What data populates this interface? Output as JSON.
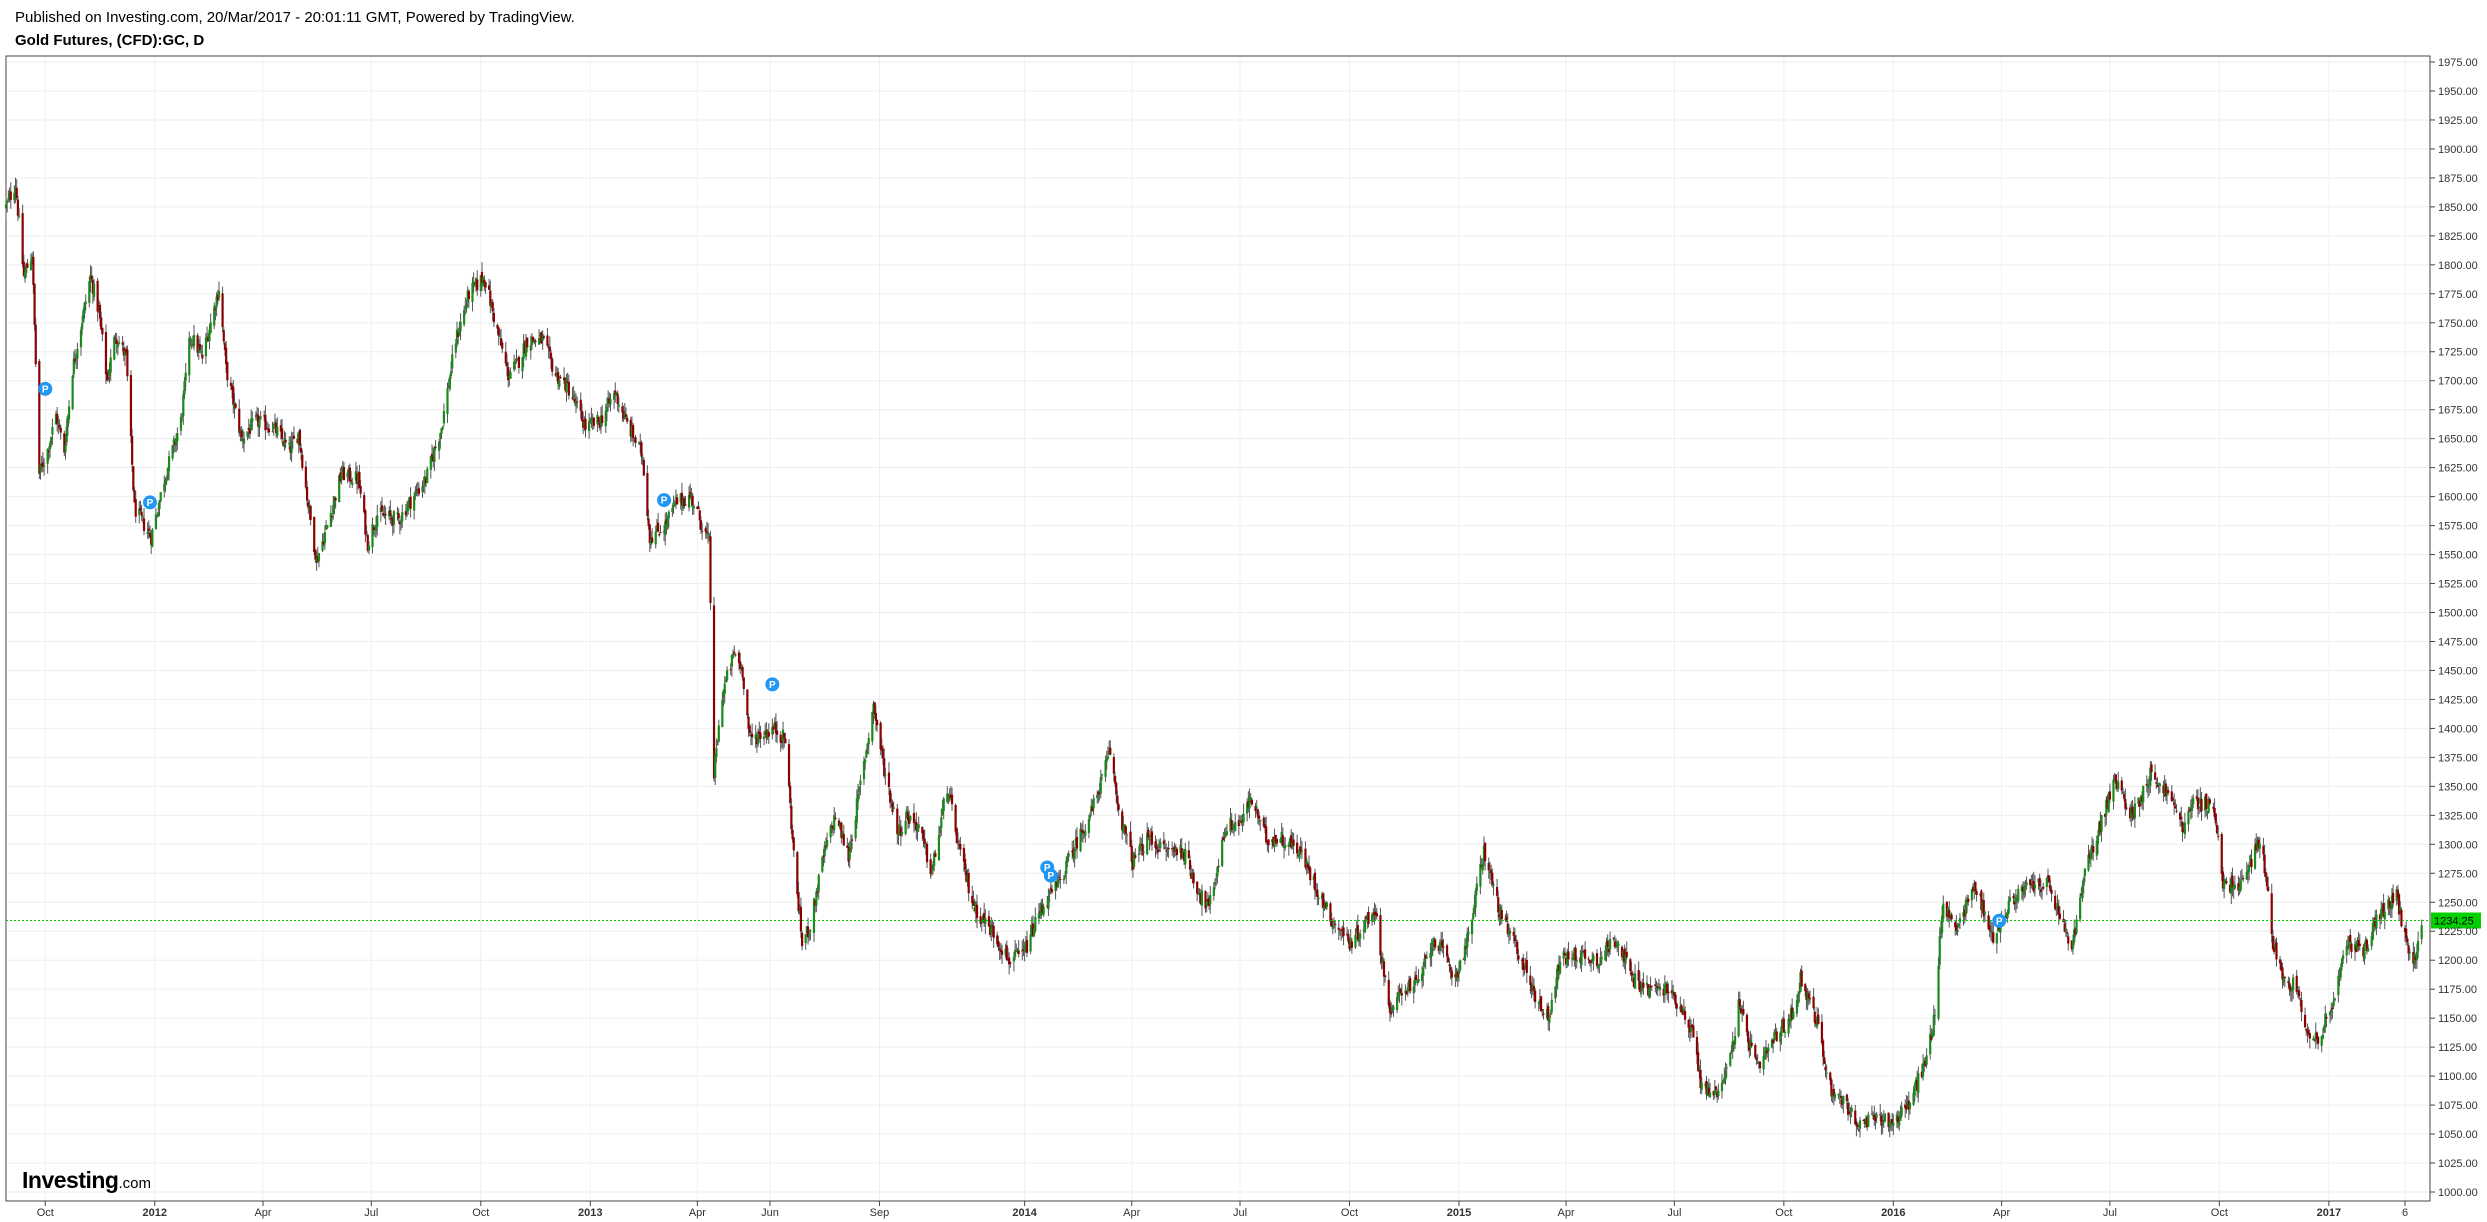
{
  "header": {
    "published": "Published on Investing.com, 20/Mar/2017 - 20:01:11 GMT, Powered by TradingView.",
    "symbol": "Gold Futures, (CFD):GC, D"
  },
  "branding": {
    "name": "Investing",
    "suffix": ".com"
  },
  "colors": {
    "up": "#1a8a1a",
    "down": "#8b0000",
    "last_price_line": "#00c800",
    "last_price_tag": "#00d000",
    "marker": "#2196f3"
  },
  "chart_data": {
    "type": "candlestick",
    "title": "Gold Futures, (CFD):GC, D",
    "ylim": [
      1000,
      1975
    ],
    "y_ticks": [
      "1975.00",
      "1950.00",
      "1925.00",
      "1900.00",
      "1875.00",
      "1850.00",
      "1825.00",
      "1800.00",
      "1775.00",
      "1750.00",
      "1725.00",
      "1700.00",
      "1675.00",
      "1650.00",
      "1625.00",
      "1600.00",
      "1575.00",
      "1550.00",
      "1525.00",
      "1500.00",
      "1475.00",
      "1450.00",
      "1425.00",
      "1400.00",
      "1375.00",
      "1350.00",
      "1325.00",
      "1300.00",
      "1275.00",
      "1250.00",
      "1225.00",
      "1200.00",
      "1175.00",
      "1150.00",
      "1125.00",
      "1100.00",
      "1075.00",
      "1050.00",
      "1025.00",
      "1000.00"
    ],
    "x_ticks": [
      {
        "label": "Oct",
        "date": "2011-10-01",
        "year": false
      },
      {
        "label": "2012",
        "date": "2012-01-01",
        "year": true
      },
      {
        "label": "Apr",
        "date": "2012-04-01",
        "year": false
      },
      {
        "label": "Jul",
        "date": "2012-07-01",
        "year": false
      },
      {
        "label": "Oct",
        "date": "2012-10-01",
        "year": false
      },
      {
        "label": "2013",
        "date": "2013-01-01",
        "year": true
      },
      {
        "label": "Apr",
        "date": "2013-04-01",
        "year": false
      },
      {
        "label": "Jun",
        "date": "2013-06-01",
        "year": false
      },
      {
        "label": "Sep",
        "date": "2013-09-01",
        "year": false
      },
      {
        "label": "2014",
        "date": "2014-01-01",
        "year": true
      },
      {
        "label": "Apr",
        "date": "2014-04-01",
        "year": false
      },
      {
        "label": "Jul",
        "date": "2014-07-01",
        "year": false
      },
      {
        "label": "Oct",
        "date": "2014-10-01",
        "year": false
      },
      {
        "label": "2015",
        "date": "2015-01-01",
        "year": true
      },
      {
        "label": "Apr",
        "date": "2015-04-01",
        "year": false
      },
      {
        "label": "Jul",
        "date": "2015-07-01",
        "year": false
      },
      {
        "label": "Oct",
        "date": "2015-10-01",
        "year": false
      },
      {
        "label": "2016",
        "date": "2016-01-01",
        "year": true
      },
      {
        "label": "Apr",
        "date": "2016-04-01",
        "year": false
      },
      {
        "label": "Jul",
        "date": "2016-07-01",
        "year": false
      },
      {
        "label": "Oct",
        "date": "2016-10-01",
        "year": false
      },
      {
        "label": "2017",
        "date": "2017-01-01",
        "year": true
      },
      {
        "label": "6",
        "date": "2017-03-06",
        "year": false
      }
    ],
    "last_price": 1234.25,
    "last_price_label": "1234.25",
    "marker_label": "P",
    "markers": [
      {
        "date": "2011-10-01",
        "price": 1693
      },
      {
        "date": "2011-12-28",
        "price": 1595
      },
      {
        "date": "2013-03-04",
        "price": 1597
      },
      {
        "date": "2013-06-03",
        "price": 1438
      },
      {
        "date": "2014-01-20",
        "price": 1280
      },
      {
        "date": "2014-01-23",
        "price": 1273
      },
      {
        "date": "2016-03-30",
        "price": 1234
      }
    ],
    "close_path": [
      [
        "2011-08-29",
        1850
      ],
      [
        "2011-09-06",
        1870
      ],
      [
        "2011-09-13",
        1790
      ],
      [
        "2011-09-20",
        1810
      ],
      [
        "2011-09-26",
        1620
      ],
      [
        "2011-10-03",
        1640
      ],
      [
        "2011-10-10",
        1670
      ],
      [
        "2011-10-17",
        1640
      ],
      [
        "2011-10-24",
        1710
      ],
      [
        "2011-11-08",
        1790
      ],
      [
        "2011-11-15",
        1760
      ],
      [
        "2011-11-22",
        1700
      ],
      [
        "2011-11-29",
        1740
      ],
      [
        "2011-12-08",
        1720
      ],
      [
        "2011-12-15",
        1590
      ],
      [
        "2011-12-29",
        1565
      ],
      [
        "2012-01-09",
        1615
      ],
      [
        "2012-01-23",
        1665
      ],
      [
        "2012-01-31",
        1740
      ],
      [
        "2012-02-10",
        1720
      ],
      [
        "2012-02-24",
        1780
      ],
      [
        "2012-03-01",
        1710
      ],
      [
        "2012-03-14",
        1650
      ],
      [
        "2012-03-26",
        1665
      ],
      [
        "2012-04-10",
        1660
      ],
      [
        "2012-04-23",
        1640
      ],
      [
        "2012-05-01",
        1655
      ],
      [
        "2012-05-08",
        1600
      ],
      [
        "2012-05-16",
        1545
      ],
      [
        "2012-05-25",
        1575
      ],
      [
        "2012-06-06",
        1620
      ],
      [
        "2012-06-20",
        1615
      ],
      [
        "2012-06-28",
        1560
      ],
      [
        "2012-07-06",
        1585
      ],
      [
        "2012-07-24",
        1580
      ],
      [
        "2012-08-02",
        1595
      ],
      [
        "2012-08-16",
        1615
      ],
      [
        "2012-08-29",
        1660
      ],
      [
        "2012-09-10",
        1735
      ],
      [
        "2012-09-21",
        1775
      ],
      [
        "2012-10-04",
        1790
      ],
      [
        "2012-10-12",
        1755
      ],
      [
        "2012-10-24",
        1705
      ],
      [
        "2012-11-01",
        1715
      ],
      [
        "2012-11-09",
        1735
      ],
      [
        "2012-11-22",
        1735
      ],
      [
        "2012-12-03",
        1705
      ],
      [
        "2012-12-13",
        1695
      ],
      [
        "2012-12-28",
        1660
      ],
      [
        "2013-01-09",
        1665
      ],
      [
        "2013-01-22",
        1690
      ],
      [
        "2013-01-31",
        1665
      ],
      [
        "2013-02-14",
        1635
      ],
      [
        "2013-02-20",
        1565
      ],
      [
        "2013-03-05",
        1575
      ],
      [
        "2013-03-14",
        1595
      ],
      [
        "2013-03-27",
        1600
      ],
      [
        "2013-04-05",
        1575
      ],
      [
        "2013-04-11",
        1560
      ],
      [
        "2013-04-15",
        1360
      ],
      [
        "2013-04-22",
        1430
      ],
      [
        "2013-05-02",
        1465
      ],
      [
        "2013-05-09",
        1450
      ],
      [
        "2013-05-15",
        1390
      ],
      [
        "2013-05-24",
        1395
      ],
      [
        "2013-06-05",
        1400
      ],
      [
        "2013-06-14",
        1390
      ],
      [
        "2013-06-21",
        1290
      ],
      [
        "2013-06-28",
        1215
      ],
      [
        "2013-07-05",
        1230
      ],
      [
        "2013-07-16",
        1290
      ],
      [
        "2013-07-26",
        1325
      ],
      [
        "2013-08-06",
        1290
      ],
      [
        "2013-08-19",
        1370
      ],
      [
        "2013-08-27",
        1420
      ],
      [
        "2013-09-05",
        1365
      ],
      [
        "2013-09-17",
        1310
      ],
      [
        "2013-09-24",
        1325
      ],
      [
        "2013-10-04",
        1315
      ],
      [
        "2013-10-15",
        1275
      ],
      [
        "2013-10-28",
        1350
      ],
      [
        "2013-11-08",
        1290
      ],
      [
        "2013-11-20",
        1245
      ],
      [
        "2013-12-05",
        1225
      ],
      [
        "2013-12-19",
        1200
      ],
      [
        "2013-12-31",
        1205
      ],
      [
        "2014-01-15",
        1245
      ],
      [
        "2014-01-29",
        1265
      ],
      [
        "2014-02-13",
        1300
      ],
      [
        "2014-02-27",
        1330
      ],
      [
        "2014-03-14",
        1380
      ],
      [
        "2014-03-21",
        1330
      ],
      [
        "2014-04-02",
        1285
      ],
      [
        "2014-04-15",
        1305
      ],
      [
        "2014-04-28",
        1295
      ],
      [
        "2014-05-14",
        1295
      ],
      [
        "2014-05-29",
        1255
      ],
      [
        "2014-06-05",
        1245
      ],
      [
        "2014-06-19",
        1315
      ],
      [
        "2014-07-03",
        1320
      ],
      [
        "2014-07-10",
        1340
      ],
      [
        "2014-07-23",
        1305
      ],
      [
        "2014-08-06",
        1305
      ],
      [
        "2014-08-20",
        1295
      ],
      [
        "2014-09-02",
        1265
      ],
      [
        "2014-09-16",
        1235
      ],
      [
        "2014-10-02",
        1215
      ],
      [
        "2014-10-13",
        1230
      ],
      [
        "2014-10-22",
        1245
      ],
      [
        "2014-11-05",
        1150
      ],
      [
        "2014-11-13",
        1175
      ],
      [
        "2014-11-28",
        1180
      ],
      [
        "2014-12-11",
        1220
      ],
      [
        "2014-12-29",
        1185
      ],
      [
        "2015-01-09",
        1220
      ],
      [
        "2015-01-22",
        1295
      ],
      [
        "2015-02-06",
        1235
      ],
      [
        "2015-02-19",
        1210
      ],
      [
        "2015-03-06",
        1170
      ],
      [
        "2015-03-17",
        1150
      ],
      [
        "2015-03-27",
        1200
      ],
      [
        "2015-04-10",
        1205
      ],
      [
        "2015-04-27",
        1200
      ],
      [
        "2015-05-14",
        1220
      ],
      [
        "2015-05-26",
        1185
      ],
      [
        "2015-06-08",
        1175
      ],
      [
        "2015-06-25",
        1175
      ],
      [
        "2015-07-07",
        1160
      ],
      [
        "2015-07-17",
        1135
      ],
      [
        "2015-07-24",
        1090
      ],
      [
        "2015-08-05",
        1085
      ],
      [
        "2015-08-17",
        1115
      ],
      [
        "2015-08-24",
        1160
      ],
      [
        "2015-09-09",
        1105
      ],
      [
        "2015-09-22",
        1130
      ],
      [
        "2015-10-09",
        1155
      ],
      [
        "2015-10-15",
        1185
      ],
      [
        "2015-10-28",
        1150
      ],
      [
        "2015-11-09",
        1090
      ],
      [
        "2015-11-23",
        1075
      ],
      [
        "2015-12-03",
        1055
      ],
      [
        "2015-12-18",
        1065
      ],
      [
        "2015-12-31",
        1060
      ],
      [
        "2016-01-14",
        1075
      ],
      [
        "2016-01-29",
        1115
      ],
      [
        "2016-02-05",
        1155
      ],
      [
        "2016-02-11",
        1245
      ],
      [
        "2016-02-24",
        1230
      ],
      [
        "2016-03-10",
        1265
      ],
      [
        "2016-03-24",
        1220
      ],
      [
        "2016-04-12",
        1255
      ],
      [
        "2016-04-28",
        1265
      ],
      [
        "2016-05-10",
        1265
      ],
      [
        "2016-05-30",
        1210
      ],
      [
        "2016-06-10",
        1275
      ],
      [
        "2016-06-24",
        1320
      ],
      [
        "2016-07-05",
        1355
      ],
      [
        "2016-07-20",
        1325
      ],
      [
        "2016-08-04",
        1360
      ],
      [
        "2016-08-18",
        1345
      ],
      [
        "2016-09-01",
        1315
      ],
      [
        "2016-09-09",
        1335
      ],
      [
        "2016-09-26",
        1335
      ],
      [
        "2016-10-04",
        1265
      ],
      [
        "2016-10-20",
        1265
      ],
      [
        "2016-11-04",
        1305
      ],
      [
        "2016-11-09",
        1275
      ],
      [
        "2016-11-14",
        1220
      ],
      [
        "2016-11-24",
        1185
      ],
      [
        "2016-12-06",
        1175
      ],
      [
        "2016-12-15",
        1135
      ],
      [
        "2016-12-22",
        1130
      ],
      [
        "2017-01-05",
        1165
      ],
      [
        "2017-01-17",
        1215
      ],
      [
        "2017-01-31",
        1210
      ],
      [
        "2017-02-10",
        1235
      ],
      [
        "2017-02-27",
        1255
      ],
      [
        "2017-03-09",
        1205
      ],
      [
        "2017-03-14",
        1200
      ],
      [
        "2017-03-20",
        1234
      ]
    ]
  }
}
